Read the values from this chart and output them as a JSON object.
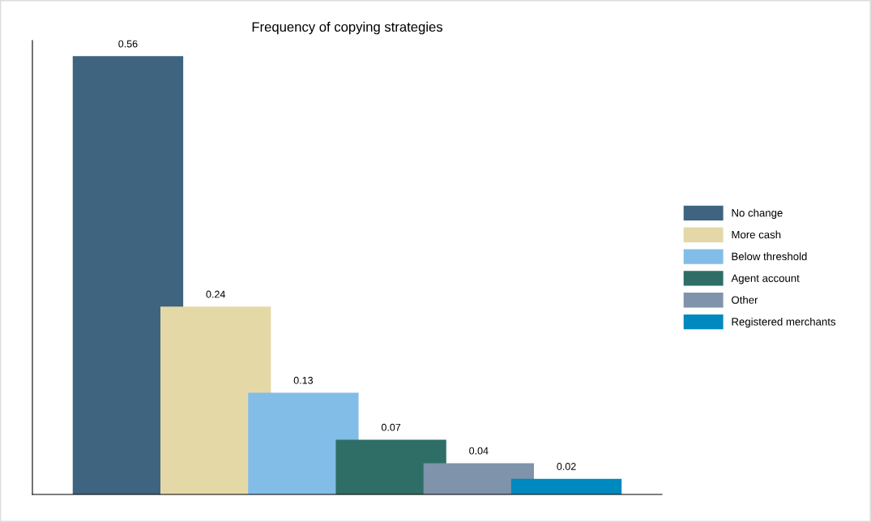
{
  "chart_data": {
    "type": "bar",
    "title": "Frequency of copying strategies",
    "categories": [
      null
    ],
    "series": [
      {
        "name": "No change",
        "color": "#3e6480",
        "values": [
          0.56
        ]
      },
      {
        "name": "More cash",
        "color": "#e4d9a6",
        "values": [
          0.24
        ]
      },
      {
        "name": "Below threshold",
        "color": "#82bde8",
        "values": [
          0.13
        ]
      },
      {
        "name": "Agent account",
        "color": "#2e6e67",
        "values": [
          0.07
        ]
      },
      {
        "name": "Other",
        "color": "#7f93ab",
        "values": [
          0.04
        ]
      },
      {
        "name": "Registered merchants",
        "color": "#0089bf",
        "values": [
          0.02
        ]
      }
    ],
    "ylim": [
      0,
      0.58
    ],
    "data_labels": true,
    "legend": "right"
  }
}
